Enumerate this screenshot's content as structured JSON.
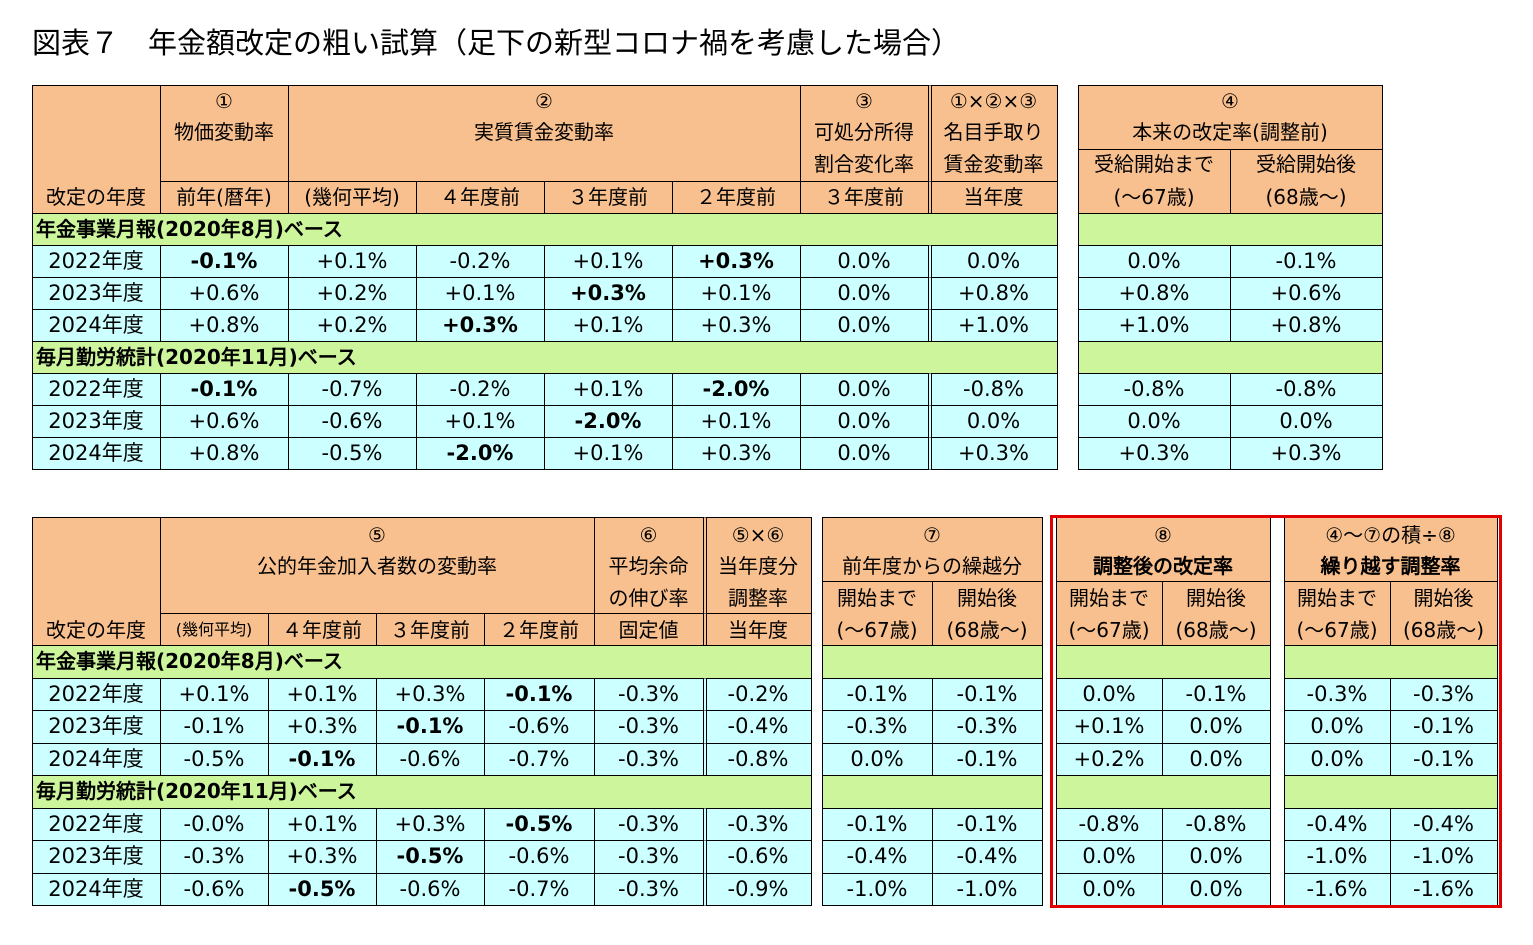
{
  "title": "図表７　年金額改定の粗い試算（足下の新型コロナ禍を考慮した場合）",
  "top_table": {
    "year_header": "改定の年度",
    "col1": {
      "num": "①",
      "name": "物価変動率",
      "sub": "前年(暦年)"
    },
    "col2": {
      "num": "②",
      "name": "実質賃金変動率",
      "subs": [
        "(幾何平均)",
        "４年度前",
        "３年度前",
        "２年度前"
      ]
    },
    "col3": {
      "num": "③",
      "name": [
        "可処分所得",
        "割合変化率"
      ],
      "sub": "３年度前"
    },
    "col4": {
      "num": "①×②×③",
      "name": [
        "名目手取り",
        "賃金変動率"
      ],
      "sub": "当年度"
    },
    "col5": {
      "num": "④",
      "name": "本来の改定率(調整前)",
      "subs": [
        [
          "受給開始まで",
          "(～67歳)"
        ],
        [
          "受給開始後",
          "(68歳～)"
        ]
      ]
    },
    "sections": [
      {
        "label": "年金事業月報(2020年8月)ベース",
        "rows": [
          {
            "year": "2022年度",
            "cells": [
              "-0.1%",
              "+0.1%",
              "-0.2%",
              "+0.1%",
              "+0.3%",
              "0.0%",
              "0.0%",
              "0.0%",
              "-0.1%"
            ],
            "bold": [
              0,
              4
            ]
          },
          {
            "year": "2023年度",
            "cells": [
              "+0.6%",
              "+0.2%",
              "+0.1%",
              "+0.3%",
              "+0.1%",
              "0.0%",
              "+0.8%",
              "+0.8%",
              "+0.6%"
            ],
            "bold": [
              3
            ]
          },
          {
            "year": "2024年度",
            "cells": [
              "+0.8%",
              "+0.2%",
              "+0.3%",
              "+0.1%",
              "+0.3%",
              "0.0%",
              "+1.0%",
              "+1.0%",
              "+0.8%"
            ],
            "bold": [
              2
            ]
          }
        ]
      },
      {
        "label": "毎月勤労統計(2020年11月)ベース",
        "rows": [
          {
            "year": "2022年度",
            "cells": [
              "-0.1%",
              "-0.7%",
              "-0.2%",
              "+0.1%",
              "-2.0%",
              "0.0%",
              "-0.8%",
              "-0.8%",
              "-0.8%"
            ],
            "bold": [
              0,
              4
            ]
          },
          {
            "year": "2023年度",
            "cells": [
              "+0.6%",
              "-0.6%",
              "+0.1%",
              "-2.0%",
              "+0.1%",
              "0.0%",
              "0.0%",
              "0.0%",
              "0.0%"
            ],
            "bold": [
              3
            ]
          },
          {
            "year": "2024年度",
            "cells": [
              "+0.8%",
              "-0.5%",
              "-2.0%",
              "+0.1%",
              "+0.3%",
              "0.0%",
              "+0.3%",
              "+0.3%",
              "+0.3%"
            ],
            "bold": [
              2
            ]
          }
        ]
      }
    ]
  },
  "bottom_table": {
    "year_header": "改定の年度",
    "col5": {
      "num": "⑤",
      "name": "公的年金加入者数の変動率",
      "subs": [
        "(幾何平均)",
        "４年度前",
        "３年度前",
        "２年度前"
      ]
    },
    "col6": {
      "num": "⑥",
      "name": [
        "平均余命",
        "の伸び率"
      ],
      "sub": "固定値"
    },
    "col56": {
      "num": "⑤×⑥",
      "name": [
        "当年度分",
        "調整率"
      ],
      "sub": "当年度"
    },
    "col7": {
      "num": "⑦",
      "name": "前年度からの繰越分",
      "subs": [
        [
          "開始まで",
          "(～67歳)"
        ],
        [
          "開始後",
          "(68歳～)"
        ]
      ]
    },
    "col8": {
      "num": "⑧",
      "name": "調整後の改定率",
      "subs": [
        [
          "開始まで",
          "(～67歳)"
        ],
        [
          "開始後",
          "(68歳～)"
        ]
      ]
    },
    "col9": {
      "num": "④～⑦の積÷⑧",
      "name": "繰り越す調整率",
      "subs": [
        [
          "開始まで",
          "(～67歳)"
        ],
        [
          "開始後",
          "(68歳～)"
        ]
      ]
    },
    "sections": [
      {
        "label": "年金事業月報(2020年8月)ベース",
        "rows": [
          {
            "year": "2022年度",
            "cells": [
              "+0.1%",
              "+0.1%",
              "+0.3%",
              "-0.1%",
              "-0.3%",
              "-0.2%",
              "-0.1%",
              "-0.1%",
              "0.0%",
              "-0.1%",
              "-0.3%",
              "-0.3%"
            ],
            "bold": [
              3
            ]
          },
          {
            "year": "2023年度",
            "cells": [
              "-0.1%",
              "+0.3%",
              "-0.1%",
              "-0.6%",
              "-0.3%",
              "-0.4%",
              "-0.3%",
              "-0.3%",
              "+0.1%",
              "0.0%",
              "0.0%",
              "-0.1%"
            ],
            "bold": [
              2
            ]
          },
          {
            "year": "2024年度",
            "cells": [
              "-0.5%",
              "-0.1%",
              "-0.6%",
              "-0.7%",
              "-0.3%",
              "-0.8%",
              "0.0%",
              "-0.1%",
              "+0.2%",
              "0.0%",
              "0.0%",
              "-0.1%"
            ],
            "bold": [
              1
            ]
          }
        ]
      },
      {
        "label": "毎月勤労統計(2020年11月)ベース",
        "rows": [
          {
            "year": "2022年度",
            "cells": [
              "-0.0%",
              "+0.1%",
              "+0.3%",
              "-0.5%",
              "-0.3%",
              "-0.3%",
              "-0.1%",
              "-0.1%",
              "-0.8%",
              "-0.8%",
              "-0.4%",
              "-0.4%"
            ],
            "bold": [
              3
            ]
          },
          {
            "year": "2023年度",
            "cells": [
              "-0.3%",
              "+0.3%",
              "-0.5%",
              "-0.6%",
              "-0.3%",
              "-0.6%",
              "-0.4%",
              "-0.4%",
              "0.0%",
              "0.0%",
              "-1.0%",
              "-1.0%"
            ],
            "bold": [
              2
            ]
          },
          {
            "year": "2024年度",
            "cells": [
              "-0.6%",
              "-0.5%",
              "-0.6%",
              "-0.7%",
              "-0.3%",
              "-0.9%",
              "-1.0%",
              "-1.0%",
              "0.0%",
              "0.0%",
              "-1.6%",
              "-1.6%"
            ],
            "bold": [
              1
            ]
          }
        ]
      }
    ]
  }
}
